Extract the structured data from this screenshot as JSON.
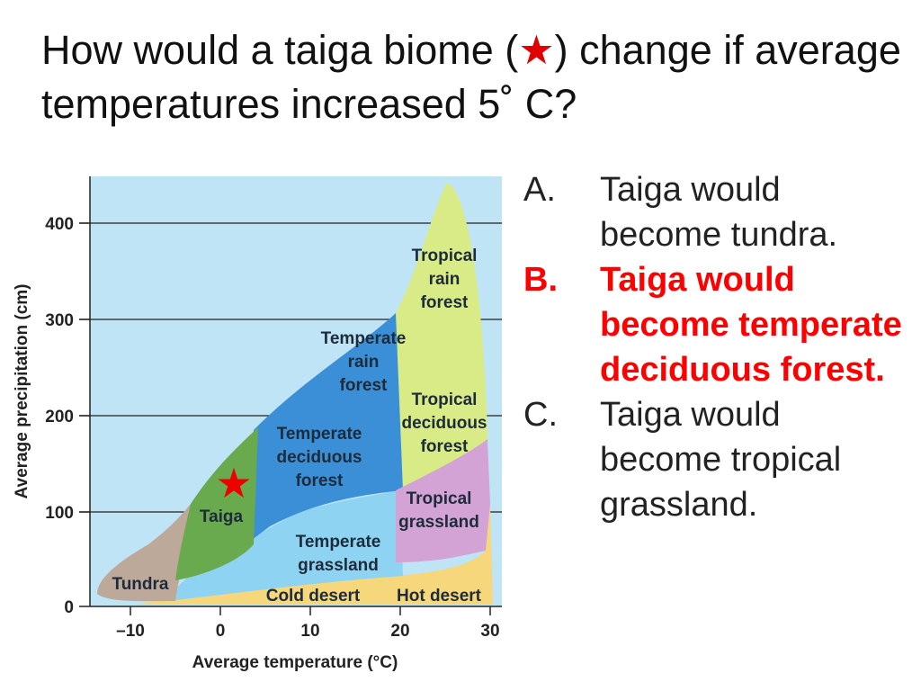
{
  "slide": {
    "title_part1": "How would a taiga biome (",
    "title_star": "★",
    "title_part2": ") change if average temperatures increased 5˚ C?"
  },
  "diagram": {
    "xlabel": "Average temperature (°C)",
    "ylabel": "Average precipitation (cm)",
    "x_ticks": [
      "–10",
      "0",
      "10",
      "20",
      "30"
    ],
    "y_ticks": [
      "0",
      "100",
      "200",
      "300",
      "400"
    ],
    "x_range": [
      -14,
      31
    ],
    "y_range": [
      0,
      445
    ],
    "star_marker": {
      "symbol": "★",
      "color": "#ee0000",
      "temperature": 1.5,
      "precipitation": 130
    },
    "biomes": {
      "tundra": "Tundra",
      "taiga": "Taiga",
      "temperate_deciduous_1": "Temperate",
      "temperate_deciduous_2": "deciduous",
      "temperate_deciduous_3": "forest",
      "temperate_rain_1": "Temperate",
      "temperate_rain_2": "rain",
      "temperate_rain_3": "forest",
      "tropical_rain_1": "Tropical",
      "tropical_rain_2": "rain",
      "tropical_rain_3": "forest",
      "tropical_deciduous_1": "Tropical",
      "tropical_deciduous_2": "deciduous",
      "tropical_deciduous_3": "forest",
      "tropical_grassland_1": "Tropical",
      "tropical_grassland_2": "grassland",
      "temperate_grassland_1": "Temperate",
      "temperate_grassland_2": "grassland",
      "cold_desert": "Cold desert",
      "hot_desert": "Hot desert"
    },
    "colors": {
      "background": "#bfe4f5",
      "tundra": "#bca99a",
      "taiga": "#6aaa4e",
      "temperate_forests": "#3a8fd6",
      "tropical_rain": "#d9eb86",
      "tropical_grassland": "#d3a3d6",
      "temperate_grassland": "#8fd3f2",
      "desert": "#f6d77c"
    }
  },
  "answers": [
    {
      "letter": "A.",
      "text": "Taiga would become tundra."
    },
    {
      "letter": "B.",
      "text": "Taiga would become temperate deciduous forest."
    },
    {
      "letter": "C.",
      "text": "Taiga would become tropical grassland."
    }
  ]
}
